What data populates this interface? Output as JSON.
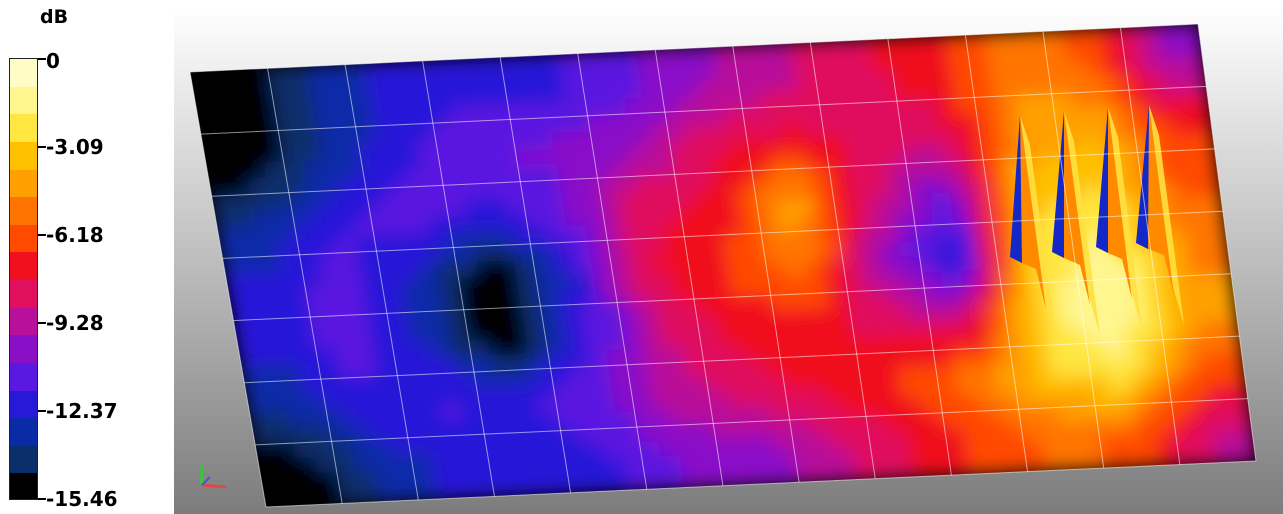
{
  "chart_data": {
    "type": "heatmap",
    "unit_label": "dB",
    "scale": {
      "min": -15.46,
      "max": 0,
      "tick_labels": [
        "0",
        "-3.09",
        "-6.18",
        "-9.28",
        "-12.37",
        "-15.46"
      ],
      "tick_values": [
        0,
        -3.09,
        -6.18,
        -9.28,
        -12.37,
        -15.46
      ],
      "colors": [
        "#fffcc8",
        "#fff690",
        "#ffe640",
        "#ffc000",
        "#ffa000",
        "#ff7400",
        "#ff4a00",
        "#f0101e",
        "#e0105e",
        "#b8109a",
        "#8a10c8",
        "#5a18e0",
        "#2818d8",
        "#0a2aa8",
        "#0a2e6a",
        "#000000"
      ]
    },
    "field": {
      "rows": 7,
      "cols": 13,
      "values": [
        [
          -15.46,
          -13.4,
          -12.4,
          -11.9,
          -11.9,
          -11.0,
          -10.0,
          -9.0,
          -8.1,
          -7.1,
          -5.1,
          -6.1,
          -10.0
        ],
        [
          -15.46,
          -13.4,
          -11.9,
          -10.5,
          -10.5,
          -9.8,
          -8.1,
          -7.5,
          -7.8,
          -8.2,
          -4.6,
          -4.1,
          -7.1
        ],
        [
          -13.4,
          -11.9,
          -11.0,
          -12.0,
          -10.8,
          -8.2,
          -7.5,
          -4.1,
          -8.4,
          -10.8,
          -3.6,
          -2.9,
          -6.1
        ],
        [
          -12.4,
          -11.0,
          -12.9,
          -15.46,
          -12.2,
          -7.8,
          -6.6,
          -5.1,
          -9.8,
          -12.6,
          -2.4,
          -1.6,
          -5.1
        ],
        [
          -12.4,
          -11.0,
          -12.9,
          -15.46,
          -11.9,
          -8.8,
          -7.3,
          -7.1,
          -8.4,
          -8.8,
          -2.1,
          -1.1,
          -4.6
        ],
        [
          -13.4,
          -11.9,
          -11.4,
          -11.9,
          -10.8,
          -9.2,
          -8.1,
          -7.5,
          -6.6,
          -5.1,
          -3.1,
          -2.1,
          -6.1
        ],
        [
          -15.46,
          -13.4,
          -12.4,
          -11.9,
          -11.9,
          -10.5,
          -10.2,
          -9.0,
          -7.8,
          -6.6,
          -5.6,
          -6.1,
          -9.0
        ]
      ]
    },
    "grid": true,
    "legend_position": "left"
  },
  "viewport": {
    "background_top": "#ffffff",
    "background_bottom": "#7c7c7c",
    "plane_color": "#000000",
    "grid_line_color": "#ffffff"
  }
}
